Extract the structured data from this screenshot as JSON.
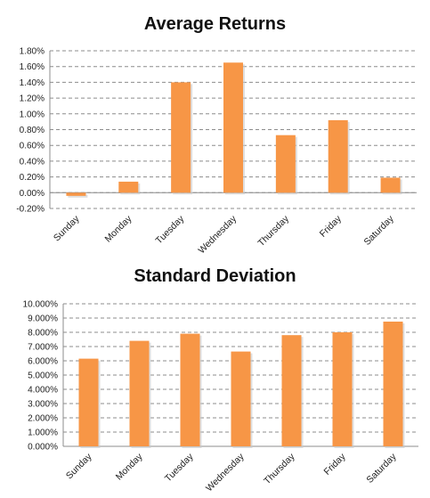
{
  "chart_data": [
    {
      "type": "bar",
      "title": "Average Returns",
      "categories": [
        "Sunday",
        "Monday",
        "Tuesday",
        "Wednesday",
        "Thursday",
        "Friday",
        "Saturday"
      ],
      "values": [
        -0.04,
        0.14,
        1.4,
        1.65,
        0.73,
        0.92,
        0.19
      ],
      "ylim": [
        -0.2,
        1.8
      ],
      "yticks": [
        "-0.20%",
        "0.00%",
        "0.20%",
        "0.40%",
        "0.60%",
        "0.80%",
        "1.00%",
        "1.20%",
        "1.40%",
        "1.60%",
        "1.80%"
      ],
      "ytick_values": [
        -0.2,
        0,
        0.2,
        0.4,
        0.6,
        0.8,
        1.0,
        1.2,
        1.4,
        1.6,
        1.8
      ],
      "grid": true,
      "legend": "none",
      "bar_color": "#F79646"
    },
    {
      "type": "bar",
      "title": "Standard Deviation",
      "categories": [
        "Sunday",
        "Monday",
        "Tuesday",
        "Wednesday",
        "Thursday",
        "Friday",
        "Saturday"
      ],
      "values": [
        6.15,
        7.4,
        7.9,
        6.65,
        7.8,
        8.0,
        8.75
      ],
      "ylim": [
        0,
        10
      ],
      "yticks": [
        "0.000%",
        "1.000%",
        "2.000%",
        "3.000%",
        "4.000%",
        "5.000%",
        "6.000%",
        "7.000%",
        "8.000%",
        "9.000%",
        "10.000%"
      ],
      "ytick_values": [
        0,
        1,
        2,
        3,
        4,
        5,
        6,
        7,
        8,
        9,
        10
      ],
      "grid": true,
      "legend": "none",
      "bar_color": "#F79646"
    }
  ]
}
